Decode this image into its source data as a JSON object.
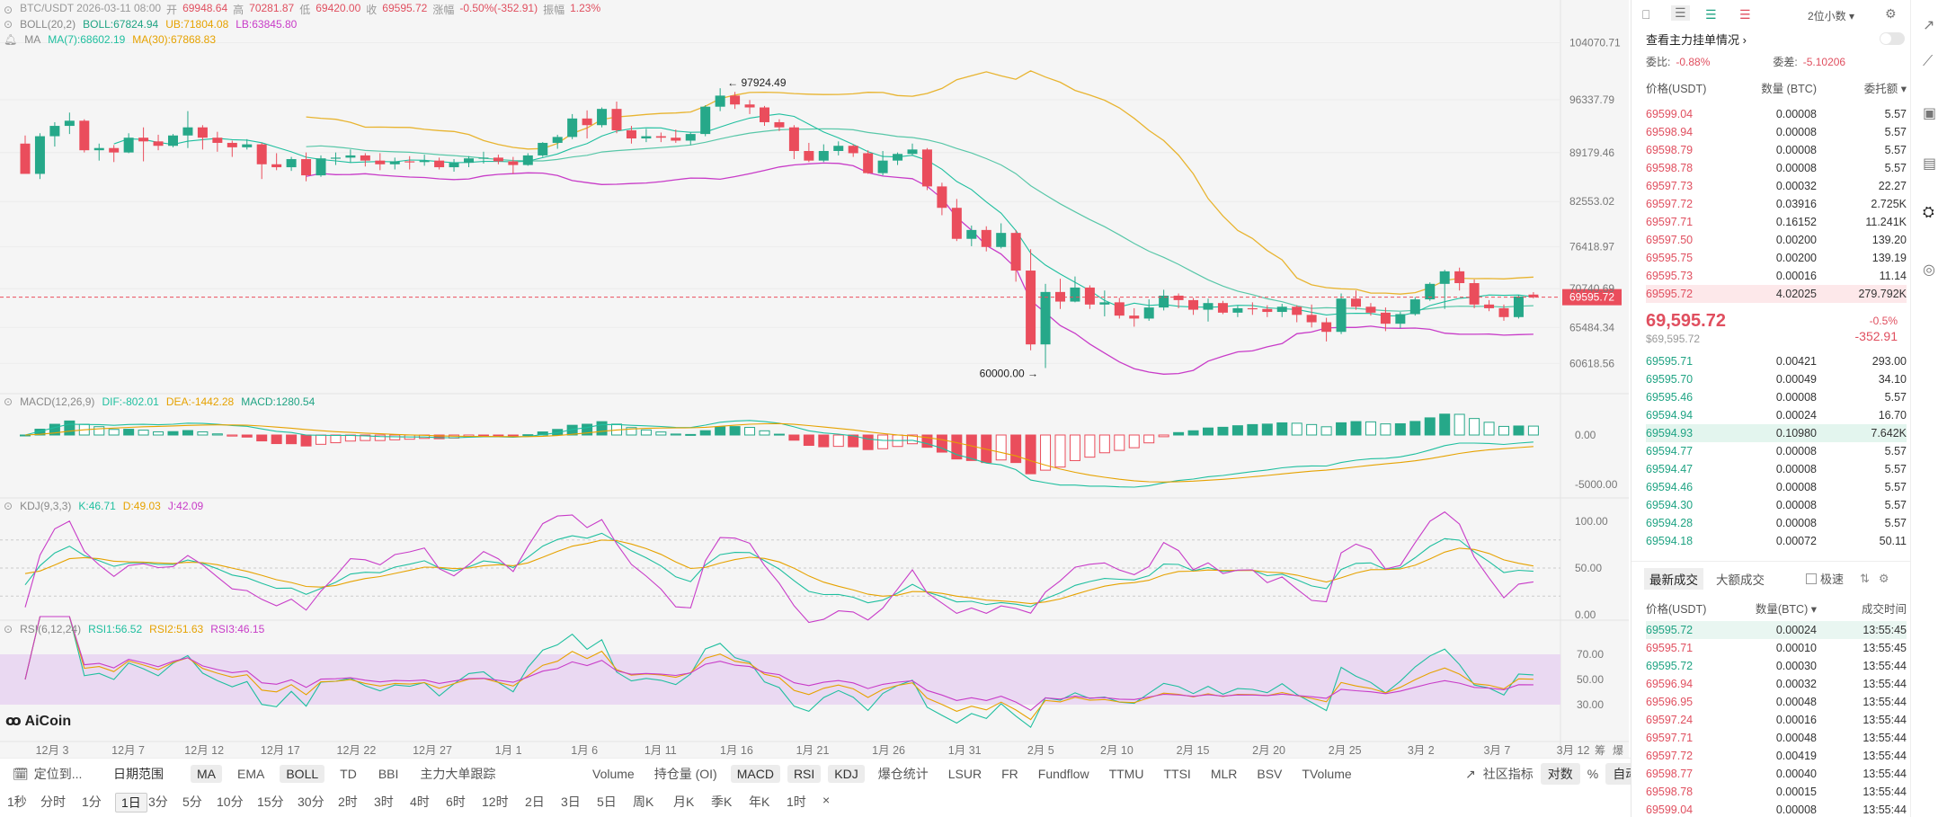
{
  "chart": {
    "symbol_line": [
      {
        "t": "BTC/USDT  2026-03-11 08:00",
        "c": "#999"
      },
      {
        "t": "开",
        "c": "#999"
      },
      {
        "t": "69948.64",
        "c": "#e04f5f"
      },
      {
        "t": "高",
        "c": "#999"
      },
      {
        "t": "70281.87",
        "c": "#e04f5f"
      },
      {
        "t": "低",
        "c": "#999"
      },
      {
        "t": "69420.00",
        "c": "#e04f5f"
      },
      {
        "t": "收",
        "c": "#999"
      },
      {
        "t": "69595.72",
        "c": "#e04f5f"
      },
      {
        "t": "涨幅",
        "c": "#999"
      },
      {
        "t": "-0.50%(-352.91)",
        "c": "#e04f5f"
      },
      {
        "t": "振幅",
        "c": "#999"
      },
      {
        "t": "1.23%",
        "c": "#e04f5f"
      }
    ],
    "boll": {
      "name": "BOLL(20,2)",
      "boll": "BOLL:67824.94",
      "ub": "UB:71804.08",
      "lb": "LB:63845.80"
    },
    "ma": {
      "name": "MA",
      "ma7": "MA(7):68602.19",
      "ma30": "MA(30):67868.83"
    },
    "macd": {
      "name": "MACD(12,26,9)",
      "dif": "DIF:-802.01",
      "dea": "DEA:-1442.28",
      "macd": "MACD:1280.54"
    },
    "kdj": {
      "name": "KDJ(9,3,3)",
      "k": "K:46.71",
      "d": "D:49.03",
      "j": "J:42.09"
    },
    "rsi": {
      "name": "RSI(6,12,24)",
      "r1": "RSI1:56.52",
      "r2": "RSI2:51.63",
      "r3": "RSI3:46.15"
    },
    "price_axis": [
      "104070.71",
      "96337.79",
      "89179.46",
      "82553.02",
      "76418.97",
      "70740.69",
      "65484.34",
      "60618.56"
    ],
    "current_price": "69595.72",
    "annotation_high": "← 97924.49",
    "annotation_low": "60000.00 →",
    "macd_axis": [
      "0.00",
      "-5000.00"
    ],
    "kdj_axis": [
      "100.00",
      "50.00",
      "0.00"
    ],
    "rsi_axis": [
      "70.00",
      "50.00",
      "30.00"
    ],
    "date_axis": [
      "12月 3",
      "12月 7",
      "12月 12",
      "12月 17",
      "12月 22",
      "12月 27",
      "1月 1",
      "1月 6",
      "1月 11",
      "1月 16",
      "1月 21",
      "1月 26",
      "1月 31",
      "2月 5",
      "2月 10",
      "2月 15",
      "2月 20",
      "2月 25",
      "3月 2",
      "3月 7",
      "3月 12"
    ],
    "axis_extra": [
      "筹",
      "爆"
    ],
    "logo": "AiCoin"
  },
  "chart_data": {
    "type": "candlestick",
    "x_first": "2025-12-01",
    "x_last": "2026-03-11",
    "interval": "1D",
    "ohlc": [
      [
        90400,
        91500,
        86500,
        86300
      ],
      [
        86300,
        91800,
        85600,
        91400
      ],
      [
        91400,
        93300,
        90000,
        92800
      ],
      [
        92800,
        94600,
        91700,
        93500
      ],
      [
        93500,
        93700,
        89200,
        89500
      ],
      [
        89500,
        90400,
        88100,
        89800
      ],
      [
        89800,
        90200,
        87900,
        89200
      ],
      [
        89200,
        91800,
        89100,
        91200
      ],
      [
        91200,
        92600,
        88000,
        90700
      ],
      [
        90700,
        91600,
        89500,
        90100
      ],
      [
        90100,
        91700,
        89900,
        91500
      ],
      [
        91500,
        94800,
        89800,
        92600
      ],
      [
        92600,
        92900,
        89600,
        91200
      ],
      [
        91200,
        92000,
        89300,
        90500
      ],
      [
        90500,
        90800,
        88600,
        89900
      ],
      [
        89900,
        91000,
        89600,
        90300
      ],
      [
        90300,
        90500,
        85600,
        87600
      ],
      [
        87600,
        89100,
        86800,
        87200
      ],
      [
        87200,
        88600,
        86700,
        88300
      ],
      [
        88300,
        89200,
        85300,
        86100
      ],
      [
        86100,
        88800,
        85900,
        88400
      ],
      [
        88400,
        89200,
        87500,
        88500
      ],
      [
        88500,
        89600,
        87800,
        88800
      ],
      [
        88800,
        89100,
        87300,
        88100
      ],
      [
        88100,
        89100,
        86800,
        87600
      ],
      [
        87600,
        88500,
        86900,
        88000
      ],
      [
        88000,
        88700,
        86900,
        87900
      ],
      [
        87900,
        88900,
        87400,
        88100
      ],
      [
        88100,
        88500,
        86900,
        87200
      ],
      [
        87200,
        88300,
        86600,
        87800
      ],
      [
        87800,
        88700,
        87200,
        88400
      ],
      [
        88400,
        89300,
        87700,
        88500
      ],
      [
        88500,
        88900,
        87600,
        88000
      ],
      [
        88000,
        88600,
        86300,
        87500
      ],
      [
        87500,
        89100,
        87400,
        88800
      ],
      [
        88800,
        90600,
        88600,
        90500
      ],
      [
        90500,
        91600,
        89700,
        91300
      ],
      [
        91300,
        94400,
        91000,
        93800
      ],
      [
        93800,
        94900,
        91100,
        92900
      ],
      [
        92900,
        95300,
        92600,
        95100
      ],
      [
        95100,
        96100,
        91800,
        92200
      ],
      [
        92200,
        92800,
        90400,
        91100
      ],
      [
        91100,
        92400,
        90600,
        91400
      ],
      [
        91400,
        91900,
        90600,
        91200
      ],
      [
        91200,
        92300,
        90500,
        90800
      ],
      [
        90800,
        91900,
        90200,
        91700
      ],
      [
        91700,
        95600,
        91400,
        95400
      ],
      [
        95400,
        97900,
        94800,
        96900
      ],
      [
        96900,
        97400,
        95100,
        95700
      ],
      [
        95700,
        96300,
        94400,
        95300
      ],
      [
        95300,
        95500,
        92800,
        93300
      ],
      [
        93300,
        93700,
        92100,
        92600
      ],
      [
        92600,
        92900,
        88300,
        89400
      ],
      [
        89400,
        90500,
        87900,
        88100
      ],
      [
        88100,
        90300,
        87900,
        89400
      ],
      [
        89400,
        90700,
        88800,
        90100
      ],
      [
        90100,
        90300,
        88600,
        89100
      ],
      [
        89100,
        89500,
        86300,
        86400
      ],
      [
        86400,
        89400,
        86100,
        88100
      ],
      [
        88100,
        89200,
        87500,
        89000
      ],
      [
        89000,
        90400,
        88800,
        89600
      ],
      [
        89600,
        89800,
        84100,
        84600
      ],
      [
        84600,
        85100,
        80700,
        81700
      ],
      [
        81700,
        82900,
        77200,
        77500
      ],
      [
        77500,
        79300,
        76500,
        78700
      ],
      [
        78700,
        79200,
        75800,
        76400
      ],
      [
        76400,
        79600,
        76200,
        78300
      ],
      [
        78300,
        78700,
        71700,
        73200
      ],
      [
        73200,
        76100,
        62400,
        63200
      ],
      [
        63200,
        71400,
        60000,
        70300
      ],
      [
        70300,
        72100,
        68000,
        69000
      ],
      [
        69000,
        72400,
        68900,
        70900
      ],
      [
        70900,
        71200,
        68000,
        68600
      ],
      [
        68600,
        70500,
        67000,
        68900
      ],
      [
        68900,
        69500,
        66700,
        67100
      ],
      [
        67100,
        68100,
        65600,
        66700
      ],
      [
        66700,
        69300,
        66400,
        68200
      ],
      [
        68200,
        70600,
        67800,
        69800
      ],
      [
        69800,
        70100,
        68100,
        69200
      ],
      [
        69200,
        69500,
        67200,
        67900
      ],
      [
        67900,
        69400,
        66300,
        68800
      ],
      [
        68800,
        69100,
        67300,
        67500
      ],
      [
        67500,
        68400,
        66900,
        68100
      ],
      [
        68100,
        68900,
        67200,
        68000
      ],
      [
        68000,
        68500,
        66900,
        67600
      ],
      [
        67600,
        68700,
        66900,
        68300
      ],
      [
        68300,
        68500,
        66200,
        67200
      ],
      [
        67200,
        68600,
        65500,
        66200
      ],
      [
        66200,
        66800,
        63600,
        64900
      ],
      [
        64900,
        70100,
        64600,
        69400
      ],
      [
        69400,
        70500,
        67900,
        68300
      ],
      [
        68300,
        68800,
        67100,
        67500
      ],
      [
        67500,
        68200,
        65000,
        66000
      ],
      [
        66000,
        67600,
        65400,
        67300
      ],
      [
        67300,
        69600,
        67100,
        69300
      ],
      [
        69300,
        71600,
        69100,
        71400
      ],
      [
        71400,
        73300,
        68000,
        73100
      ],
      [
        73100,
        73600,
        70500,
        71500
      ],
      [
        71500,
        72000,
        68100,
        68600
      ],
      [
        68600,
        69200,
        67700,
        68100
      ],
      [
        68100,
        68600,
        66400,
        66900
      ],
      [
        66900,
        69900,
        66700,
        69700
      ],
      [
        69948.64,
        70281.87,
        69420,
        69595.72
      ]
    ],
    "y_axis_ticks": [
      104070.71,
      96337.79,
      89179.46,
      82553.02,
      76418.97,
      70740.69,
      65484.34,
      60618.56
    ],
    "overlays": [
      "BOLL(20,2)",
      "MA(7)",
      "MA(30)"
    ],
    "subcharts": [
      "MACD(12,26,9)",
      "KDJ(9,3,3)",
      "RSI(6,12,24)"
    ]
  },
  "orderbook": {
    "toggle_label": "2位小数",
    "title": "查看主力挂单情况 ›",
    "ratio_label": "委比:",
    "ratio": "-0.88%",
    "diff_label": "委差:",
    "diff": "-5.10206",
    "cols": [
      "价格(USDT)",
      "数量 (BTC)",
      "委托额"
    ],
    "asks": [
      [
        "69599.04",
        "0.00008",
        "5.57"
      ],
      [
        "69598.94",
        "0.00008",
        "5.57"
      ],
      [
        "69598.79",
        "0.00008",
        "5.57"
      ],
      [
        "69598.78",
        "0.00008",
        "5.57"
      ],
      [
        "69597.73",
        "0.00032",
        "22.27"
      ],
      [
        "69597.72",
        "0.03916",
        "2.725K"
      ],
      [
        "69597.71",
        "0.16152",
        "11.241K"
      ],
      [
        "69597.50",
        "0.00200",
        "139.20"
      ],
      [
        "69595.75",
        "0.00200",
        "139.19"
      ],
      [
        "69595.73",
        "0.00016",
        "11.14"
      ],
      [
        "69595.72",
        "4.02025",
        "279.792K"
      ]
    ],
    "last": "69,595.72",
    "last_sub": "$69,595.72",
    "chg_pct": "-0.5%",
    "chg_abs": "-352.91",
    "bids": [
      [
        "69595.71",
        "0.00421",
        "293.00"
      ],
      [
        "69595.70",
        "0.00049",
        "34.10"
      ],
      [
        "69595.46",
        "0.00008",
        "5.57"
      ],
      [
        "69594.94",
        "0.00024",
        "16.70"
      ],
      [
        "69594.93",
        "0.10980",
        "7.642K"
      ],
      [
        "69594.77",
        "0.00008",
        "5.57"
      ],
      [
        "69594.47",
        "0.00008",
        "5.57"
      ],
      [
        "69594.46",
        "0.00008",
        "5.57"
      ],
      [
        "69594.30",
        "0.00008",
        "5.57"
      ],
      [
        "69594.28",
        "0.00008",
        "5.57"
      ],
      [
        "69594.18",
        "0.00072",
        "50.11"
      ]
    ]
  },
  "trades": {
    "tab_latest": "最新成交",
    "tab_large": "大额成交",
    "fast_label": "极速",
    "cols": [
      "价格(USDT)",
      "数量(BTC) ▾",
      "成交时间"
    ],
    "rows": [
      [
        "69595.72",
        "0.00024",
        "13:55:45",
        "g"
      ],
      [
        "69595.71",
        "0.00010",
        "13:55:45",
        "r"
      ],
      [
        "69595.72",
        "0.00030",
        "13:55:44",
        "g"
      ],
      [
        "69596.94",
        "0.00032",
        "13:55:44",
        "r"
      ],
      [
        "69596.95",
        "0.00048",
        "13:55:44",
        "r"
      ],
      [
        "69597.24",
        "0.00016",
        "13:55:44",
        "r"
      ],
      [
        "69597.71",
        "0.00048",
        "13:55:44",
        "r"
      ],
      [
        "69597.72",
        "0.00419",
        "13:55:44",
        "r"
      ],
      [
        "69598.77",
        "0.00040",
        "13:55:44",
        "r"
      ],
      [
        "69598.78",
        "0.00015",
        "13:55:44",
        "r"
      ],
      [
        "69599.04",
        "0.00008",
        "13:55:44",
        "r"
      ]
    ]
  },
  "toolbar": {
    "locate": "定位到...",
    "range": "日期范围",
    "indicators": [
      "MA",
      "EMA",
      "BOLL",
      "TD",
      "BBI",
      "主力大单跟踪"
    ],
    "indicators2": [
      "Volume",
      "持仓量 (OI)",
      "MACD",
      "RSI",
      "KDJ",
      "爆仓统计",
      "LSUR",
      "FR",
      "Fundflow",
      "TTMU",
      "TTSI",
      "MLR",
      "BSV",
      "TVolume"
    ],
    "community": "社区指标",
    "pair": "对数",
    "pct": "%",
    "auto": "自动",
    "periods": [
      "1秒",
      "分时",
      "1分",
      "1日",
      "3分",
      "5分",
      "10分",
      "15分",
      "30分",
      "2时",
      "3时",
      "4时",
      "6时",
      "12时",
      "2日",
      "3日",
      "5日",
      "周K",
      "月K",
      "季K",
      "年K",
      "1时",
      "×"
    ]
  }
}
